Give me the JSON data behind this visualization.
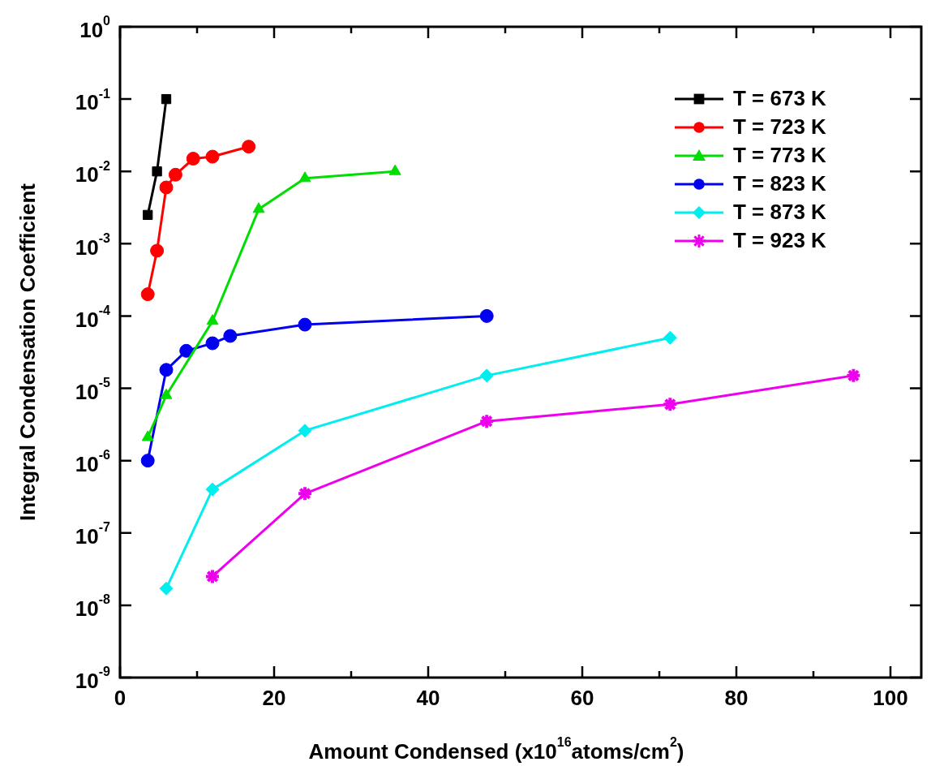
{
  "chart_data": {
    "type": "line",
    "xlabel": "Amount Condensed (x10$^{16}$atoms/cm$^{2}$)",
    "ylabel": "Integral Condensation Coefficient",
    "log": "y",
    "xlim": [
      0,
      104
    ],
    "ylim": [
      1e-09,
      1
    ],
    "xticks": [
      0,
      {
        "value": 10,
        "label": null
      },
      20,
      {
        "value": 30,
        "label": null
      },
      40,
      {
        "value": 50,
        "label": null
      },
      60,
      {
        "value": 70,
        "label": null
      },
      80,
      {
        "value": 90,
        "label": null
      },
      100
    ],
    "yticks": [
      {
        "value": 1e-09,
        "label": "10$^{-9}$"
      },
      {
        "value": 1e-08,
        "label": "10$^{-8}$"
      },
      {
        "value": 1e-07,
        "label": "10$^{-7}$"
      },
      {
        "value": 1e-06,
        "label": "10$^{-6}$"
      },
      {
        "value": 1e-05,
        "label": "10$^{-5}$"
      },
      {
        "value": 0.0001,
        "label": "10$^{-4}$"
      },
      {
        "value": 0.001,
        "label": "10$^{-3}$"
      },
      {
        "value": 0.01,
        "label": "10$^{-2}$"
      },
      {
        "value": 0.1,
        "label": "10$^{-1}$"
      },
      {
        "value": 1,
        "label": "10$^{0}$"
      }
    ],
    "grid": false,
    "legend": "top right",
    "line_style": "solid",
    "series": [
      {
        "name": "T = 673 K",
        "color": "#000000",
        "marker": "square",
        "x": [
          3.6,
          4.8,
          6.0
        ],
        "values": [
          0.0025,
          0.01,
          0.1
        ]
      },
      {
        "name": "T = 723 K",
        "color": "#ff0000",
        "marker": "circle",
        "x": [
          3.6,
          4.8,
          6.0,
          7.2,
          9.5,
          12.0,
          16.7
        ],
        "values": [
          0.0002,
          0.0008,
          0.006,
          0.009,
          0.015,
          0.016,
          0.022
        ]
      },
      {
        "name": "T = 773 K",
        "color": "#00dd00",
        "marker": "triangle",
        "x": [
          3.6,
          6.0,
          12.0,
          18.0,
          24.0,
          35.7
        ],
        "values": [
          2.1e-06,
          8e-06,
          8.5e-05,
          0.003,
          0.008,
          0.01
        ]
      },
      {
        "name": "T = 823 K",
        "color": "#0000ee",
        "marker": "circle",
        "x": [
          3.6,
          6.0,
          8.6,
          12.0,
          14.3,
          24.0,
          47.6
        ],
        "values": [
          1e-06,
          1.8e-05,
          3.3e-05,
          4.2e-05,
          5.3e-05,
          7.6e-05,
          0.0001
        ]
      },
      {
        "name": "T = 873 K",
        "color": "#00eeee",
        "marker": "diamond",
        "x": [
          6.0,
          12.0,
          24.0,
          47.6,
          71.4
        ],
        "values": [
          1.7e-08,
          4e-07,
          2.6e-06,
          1.5e-05,
          5e-05
        ]
      },
      {
        "name": "T = 923 K",
        "color": "#ee00ee",
        "marker": "cross",
        "x": [
          12.0,
          24.0,
          47.6,
          71.4,
          95.2
        ],
        "values": [
          2.5e-08,
          3.5e-07,
          3.5e-06,
          6e-06,
          1.5e-05
        ]
      }
    ]
  }
}
